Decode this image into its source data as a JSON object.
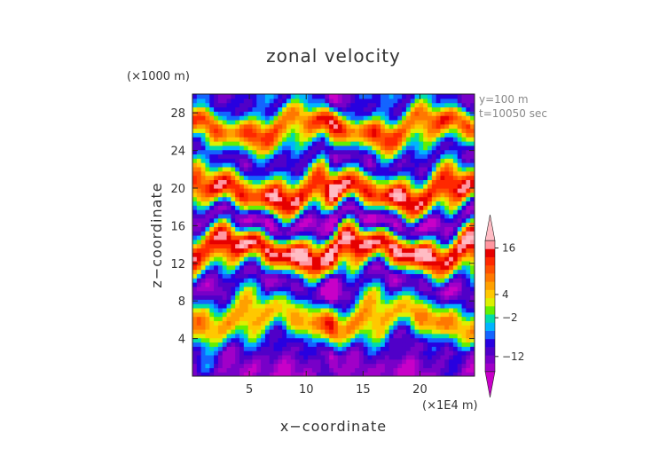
{
  "chart_data": {
    "type": "heatmap",
    "title": "zonal velocity",
    "xlabel": "x−coordinate",
    "ylabel": "z−coordinate",
    "x_scale_label": "(×1E4 m)",
    "y_scale_label": "(×1000 m)",
    "annotations": [
      "y=100 m",
      "t=10050 sec"
    ],
    "xlim": [
      0,
      24.8
    ],
    "ylim": [
      0,
      30
    ],
    "x_ticks": [
      5,
      10,
      15,
      20
    ],
    "x_tick_labels": [
      "5",
      "10",
      "15",
      "20"
    ],
    "y_ticks": [
      4,
      8,
      12,
      16,
      20,
      24,
      28
    ],
    "y_tick_labels": [
      "4",
      "8",
      "12",
      "16",
      "20",
      "24",
      "28"
    ],
    "colorbar": {
      "tick_values": [
        -12,
        -2,
        4,
        16
      ],
      "tick_labels": [
        "−12",
        "−2",
        "4",
        "16"
      ],
      "levels": [
        {
          "color": "#c800c8"
        },
        {
          "color": "#a000c8"
        },
        {
          "color": "#7800c8"
        },
        {
          "color": "#5000c8"
        },
        {
          "color": "#2800e0"
        },
        {
          "color": "#1464ff"
        },
        {
          "color": "#00b4ff"
        },
        {
          "color": "#00dcaa"
        },
        {
          "color": "#64f000"
        },
        {
          "color": "#dcf000"
        },
        {
          "color": "#ffc800"
        },
        {
          "color": "#ffa000"
        },
        {
          "color": "#ff7800"
        },
        {
          "color": "#ff5000"
        },
        {
          "color": "#ff2800"
        },
        {
          "color": "#e60000"
        },
        {
          "color": "#ff96a0"
        },
        {
          "color": "#ffbcc4"
        }
      ]
    },
    "bands": [
      {
        "z_range": [
          28,
          30
        ],
        "u_approx": -8
      },
      {
        "z_range": [
          25,
          28
        ],
        "u_approx": 10
      },
      {
        "z_range": [
          21,
          25
        ],
        "u_approx": -10
      },
      {
        "z_range": [
          18,
          21
        ],
        "u_approx": 14
      },
      {
        "z_range": [
          15,
          18
        ],
        "u_approx": -14
      },
      {
        "z_range": [
          12,
          15
        ],
        "u_approx": 16
      },
      {
        "z_range": [
          8,
          12
        ],
        "u_approx": -12
      },
      {
        "z_range": [
          4,
          8
        ],
        "u_approx": 6
      },
      {
        "z_range": [
          1.5,
          4
        ],
        "u_approx": -10
      },
      {
        "z_range": [
          0,
          1.5
        ],
        "u_approx": -14
      }
    ]
  }
}
